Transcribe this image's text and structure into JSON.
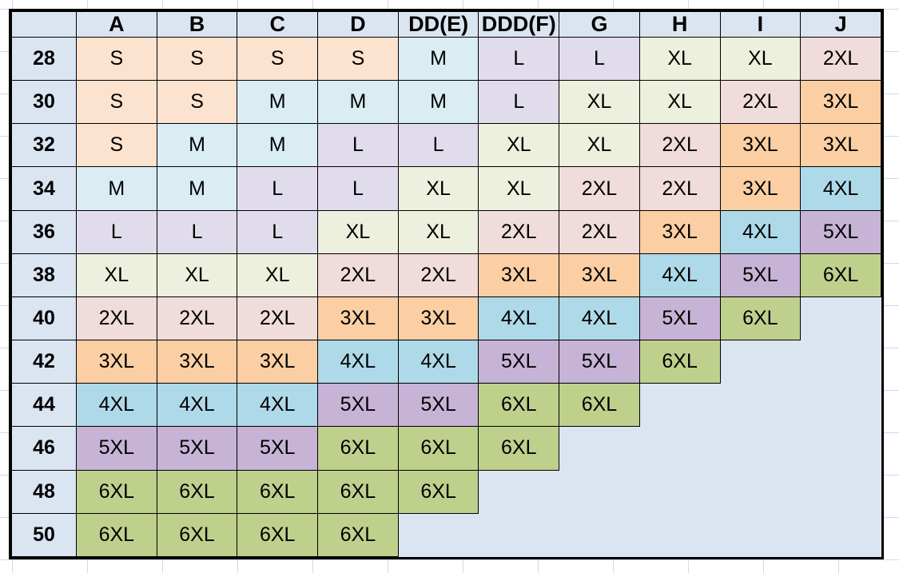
{
  "table": {
    "corner_label": "",
    "columns": [
      "A",
      "B",
      "C",
      "D",
      "DD(E)",
      "DDD(F)",
      "G",
      "H",
      "I",
      "J"
    ],
    "rows": [
      {
        "band": "28",
        "cells": [
          "S",
          "S",
          "S",
          "S",
          "M",
          "L",
          "L",
          "XL",
          "XL",
          "2XL"
        ]
      },
      {
        "band": "30",
        "cells": [
          "S",
          "S",
          "M",
          "M",
          "M",
          "L",
          "XL",
          "XL",
          "2XL",
          "3XL"
        ]
      },
      {
        "band": "32",
        "cells": [
          "S",
          "M",
          "M",
          "L",
          "L",
          "XL",
          "XL",
          "2XL",
          "3XL",
          "3XL"
        ]
      },
      {
        "band": "34",
        "cells": [
          "M",
          "M",
          "L",
          "L",
          "XL",
          "XL",
          "2XL",
          "2XL",
          "3XL",
          "4XL"
        ]
      },
      {
        "band": "36",
        "cells": [
          "L",
          "L",
          "L",
          "XL",
          "XL",
          "2XL",
          "2XL",
          "3XL",
          "4XL",
          "5XL"
        ]
      },
      {
        "band": "38",
        "cells": [
          "XL",
          "XL",
          "XL",
          "2XL",
          "2XL",
          "3XL",
          "3XL",
          "4XL",
          "5XL",
          "6XL"
        ]
      },
      {
        "band": "40",
        "cells": [
          "2XL",
          "2XL",
          "2XL",
          "3XL",
          "3XL",
          "4XL",
          "4XL",
          "5XL",
          "6XL",
          ""
        ]
      },
      {
        "band": "42",
        "cells": [
          "3XL",
          "3XL",
          "3XL",
          "4XL",
          "4XL",
          "5XL",
          "5XL",
          "6XL",
          "",
          ""
        ]
      },
      {
        "band": "44",
        "cells": [
          "4XL",
          "4XL",
          "4XL",
          "5XL",
          "5XL",
          "6XL",
          "6XL",
          "",
          "",
          ""
        ]
      },
      {
        "band": "46",
        "cells": [
          "5XL",
          "5XL",
          "5XL",
          "6XL",
          "6XL",
          "6XL",
          "",
          "",
          "",
          ""
        ]
      },
      {
        "band": "48",
        "cells": [
          "6XL",
          "6XL",
          "6XL",
          "6XL",
          "6XL",
          "",
          "",
          "",
          "",
          ""
        ]
      },
      {
        "band": "50",
        "cells": [
          "6XL",
          "6XL",
          "6XL",
          "6XL",
          "",
          "",
          "",
          "",
          "",
          ""
        ]
      }
    ]
  },
  "colors": {
    "header_fill": "#dbe5f1",
    "empty_fill": "#dbe5f1",
    "border": "#000000",
    "gridline": "#d0daea",
    "size_fills": {
      "S": "#fbe3d0",
      "M": "#d9edf3",
      "L": "#e1dcec",
      "XL": "#ecf0dc",
      "2XL": "#f0dcdb",
      "3XL": "#fbcfa3",
      "4XL": "#aed9e8",
      "5XL": "#c6b3d6",
      "6XL": "#bfd08d"
    }
  },
  "chart_data": {
    "type": "table",
    "title": "",
    "columns": [
      "A",
      "B",
      "C",
      "D",
      "DD(E)",
      "DDD(F)",
      "G",
      "H",
      "I",
      "J"
    ],
    "row_labels": [
      "28",
      "30",
      "32",
      "34",
      "36",
      "38",
      "40",
      "42",
      "44",
      "46",
      "48",
      "50"
    ],
    "values": [
      [
        "S",
        "S",
        "S",
        "S",
        "M",
        "L",
        "L",
        "XL",
        "XL",
        "2XL"
      ],
      [
        "S",
        "S",
        "M",
        "M",
        "M",
        "L",
        "XL",
        "XL",
        "2XL",
        "3XL"
      ],
      [
        "S",
        "M",
        "M",
        "L",
        "L",
        "XL",
        "XL",
        "2XL",
        "3XL",
        "3XL"
      ],
      [
        "M",
        "M",
        "L",
        "L",
        "XL",
        "XL",
        "2XL",
        "2XL",
        "3XL",
        "4XL"
      ],
      [
        "L",
        "L",
        "L",
        "XL",
        "XL",
        "2XL",
        "2XL",
        "3XL",
        "4XL",
        "5XL"
      ],
      [
        "XL",
        "XL",
        "XL",
        "2XL",
        "2XL",
        "3XL",
        "3XL",
        "4XL",
        "5XL",
        "6XL"
      ],
      [
        "2XL",
        "2XL",
        "2XL",
        "3XL",
        "3XL",
        "4XL",
        "4XL",
        "5XL",
        "6XL",
        ""
      ],
      [
        "3XL",
        "3XL",
        "3XL",
        "4XL",
        "4XL",
        "5XL",
        "5XL",
        "6XL",
        "",
        ""
      ],
      [
        "4XL",
        "4XL",
        "4XL",
        "5XL",
        "5XL",
        "6XL",
        "6XL",
        "",
        "",
        ""
      ],
      [
        "5XL",
        "5XL",
        "5XL",
        "6XL",
        "6XL",
        "6XL",
        "",
        "",
        "",
        ""
      ],
      [
        "6XL",
        "6XL",
        "6XL",
        "6XL",
        "6XL",
        "",
        "",
        "",
        "",
        ""
      ],
      [
        "6XL",
        "6XL",
        "6XL",
        "6XL",
        "",
        "",
        "",
        "",
        "",
        ""
      ]
    ],
    "legend": "cell background color encodes garment size (S through 6XL)",
    "grid": true
  }
}
